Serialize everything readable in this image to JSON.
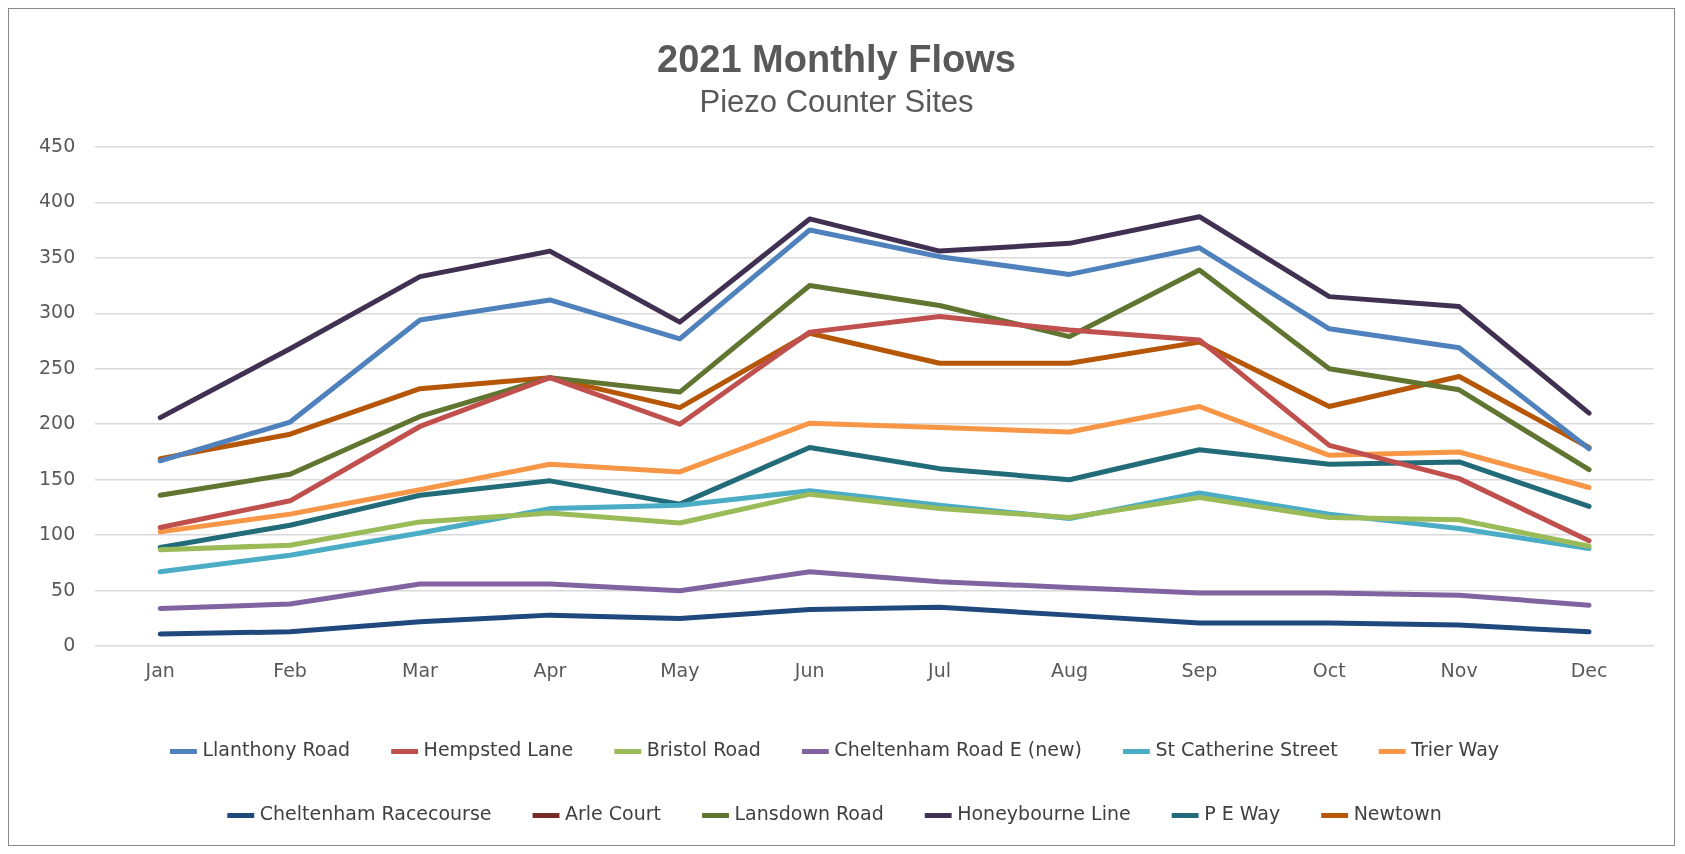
{
  "chart_data": {
    "type": "line",
    "title": "2021 Monthly Flows",
    "subtitle": "Piezo Counter Sites",
    "categories": [
      "Jan",
      "Feb",
      "Mar",
      "Apr",
      "May",
      "Jun",
      "Jul",
      "Aug",
      "Sep",
      "Oct",
      "Nov",
      "Dec"
    ],
    "series": [
      {
        "name": "Llanthony Road",
        "color": "#4f81bd",
        "values": [
          167,
          202,
          294,
          312,
          277,
          375,
          351,
          335,
          359,
          286,
          269,
          178
        ]
      },
      {
        "name": "Hempsted Lane",
        "color": "#c0504d",
        "values": [
          107,
          131,
          198,
          242,
          200,
          283,
          297,
          285,
          276,
          181,
          151,
          95
        ]
      },
      {
        "name": "Bristol Road",
        "color": "#9bbb59",
        "values": [
          87,
          91,
          112,
          120,
          111,
          137,
          124,
          116,
          134,
          116,
          114,
          90
        ]
      },
      {
        "name": "Cheltenham Road E (new)",
        "color": "#8064a2",
        "values": [
          34,
          38,
          56,
          56,
          50,
          67,
          58,
          53,
          48,
          48,
          46,
          37
        ]
      },
      {
        "name": "St Catherine Street",
        "color": "#4bacc6",
        "values": [
          67,
          82,
          102,
          124,
          127,
          140,
          127,
          115,
          138,
          119,
          106,
          88
        ]
      },
      {
        "name": "Trier Way",
        "color": "#f79646",
        "values": [
          103,
          119,
          141,
          164,
          157,
          201,
          197,
          193,
          216,
          172,
          175,
          143
        ]
      },
      {
        "name": "Cheltenham Racecourse",
        "color": "#1f497d",
        "values": [
          11,
          13,
          22,
          28,
          25,
          33,
          35,
          28,
          21,
          21,
          19,
          13
        ]
      },
      {
        "name": "Arle Court",
        "color": "#772c2a",
        "values": [
          null,
          null,
          null,
          null,
          null,
          null,
          null,
          null,
          null,
          null,
          null,
          null
        ]
      },
      {
        "name": "Lansdown Road",
        "color": "#5f7530",
        "values": [
          136,
          155,
          207,
          242,
          229,
          325,
          307,
          279,
          339,
          250,
          231,
          159
        ]
      },
      {
        "name": "Honeybourne Line",
        "color": "#403152",
        "values": [
          206,
          268,
          333,
          356,
          292,
          385,
          356,
          363,
          387,
          315,
          306,
          210
        ]
      },
      {
        "name": "P E Way",
        "color": "#226b78",
        "values": [
          89,
          109,
          136,
          149,
          128,
          179,
          160,
          150,
          177,
          164,
          166,
          126
        ]
      },
      {
        "name": "Newtown",
        "color": "#b65708",
        "values": [
          169,
          191,
          232,
          242,
          215,
          282,
          255,
          255,
          274,
          216,
          243,
          179
        ]
      }
    ],
    "ylim": [
      0,
      450
    ],
    "yticks": [
      0,
      50,
      100,
      150,
      200,
      250,
      300,
      350,
      400,
      450
    ],
    "grid": "y",
    "legend": "bottom",
    "marker": "none",
    "line_style": "solid"
  }
}
